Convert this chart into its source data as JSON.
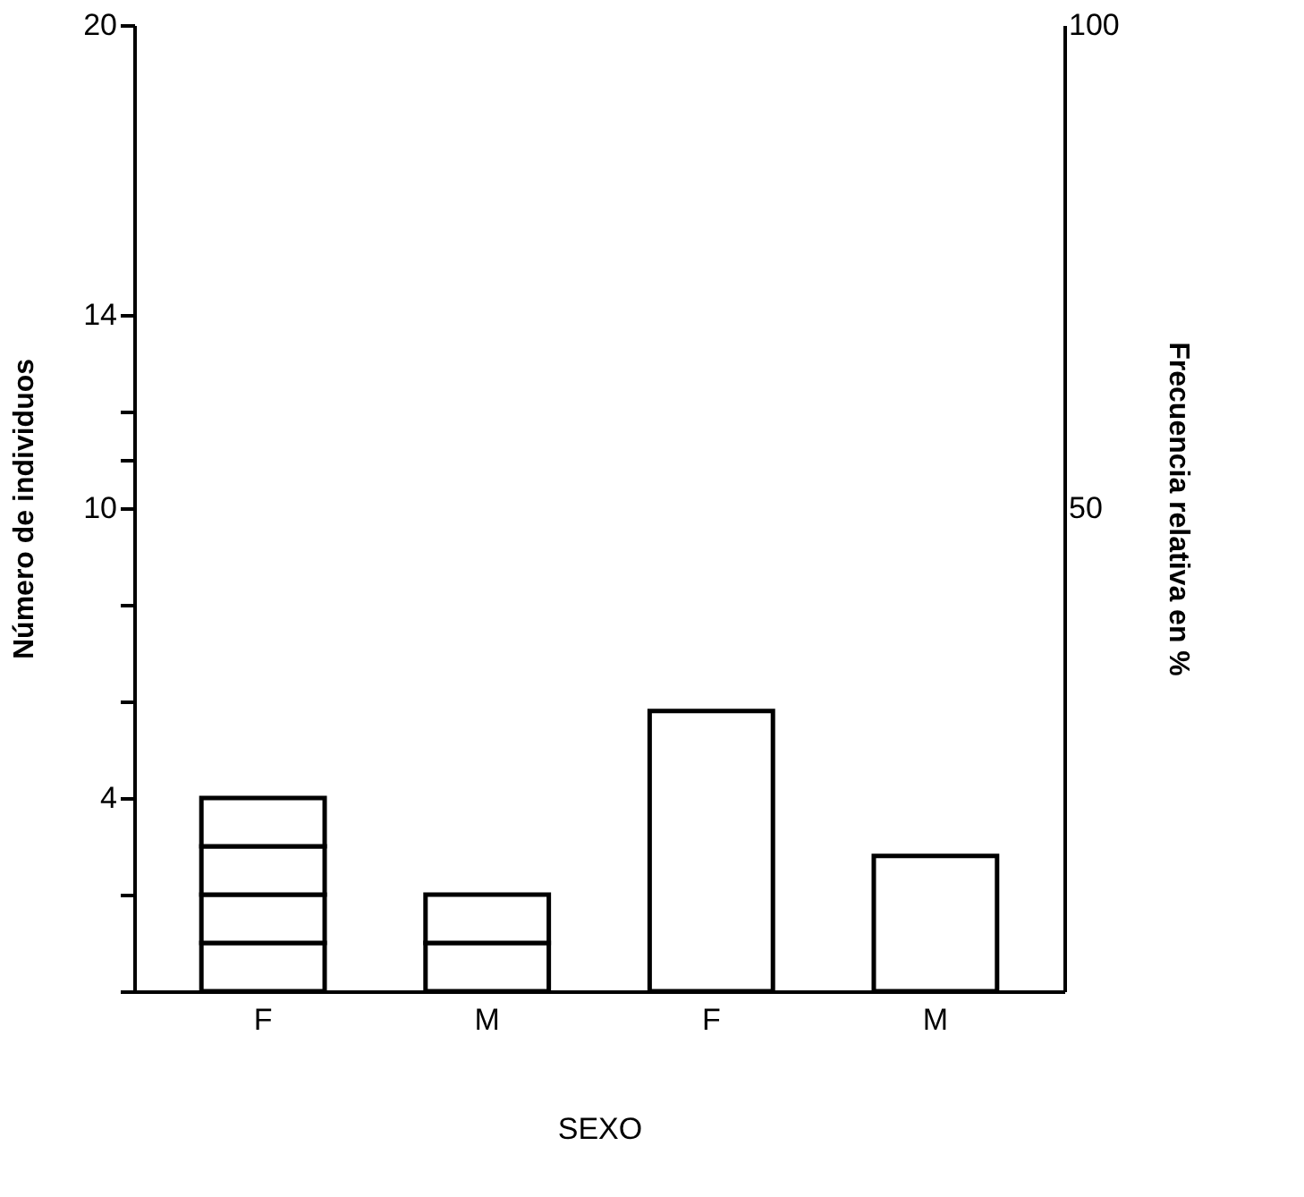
{
  "chart_data": {
    "type": "bar",
    "xlabel": "SEXO",
    "ylabel": "Número de individuos",
    "y2label": "Frecuencia relativa en %",
    "categories": [
      "F",
      "M",
      "F",
      "M"
    ],
    "stacked": true,
    "series": [
      {
        "color": "#ffffff",
        "values": [
          1,
          1,
          null,
          null
        ]
      },
      {
        "color": "#ffffff",
        "values": [
          1,
          1,
          null,
          null
        ]
      },
      {
        "color": "#ffffff",
        "values": [
          1,
          null,
          null,
          null
        ]
      },
      {
        "color": "#ffffff",
        "values": [
          1,
          null,
          null,
          null
        ]
      },
      {
        "color": "#ffffff",
        "axis": "y2",
        "values": [
          null,
          null,
          29,
          14
        ]
      }
    ],
    "ylim": [
      0,
      20
    ],
    "yticks": [
      {
        "value": 0,
        "label": null
      },
      {
        "value": 2,
        "label": null
      },
      4,
      {
        "value": 6,
        "label": null
      },
      {
        "value": 8,
        "label": null
      },
      10,
      {
        "value": 11,
        "label": null
      },
      {
        "value": 12,
        "label": null
      },
      14,
      20
    ],
    "y2lim": [
      0,
      100
    ],
    "y2ticks": [
      50,
      100
    ],
    "grid": false
  }
}
